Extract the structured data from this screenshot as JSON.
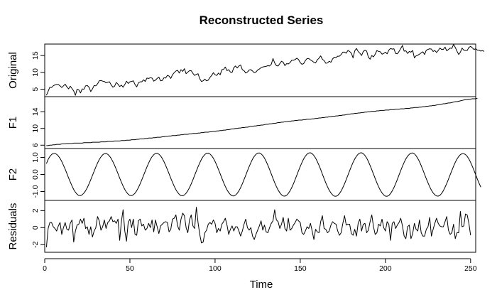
{
  "title": "Reconstructed Series",
  "chart_data": {
    "type": "line",
    "title": "Reconstructed Series",
    "xlabel": "Time",
    "xlim": [
      0,
      253
    ],
    "xticks": [
      0,
      50,
      100,
      150,
      200,
      250
    ],
    "n_points": 250,
    "panels": [
      {
        "name": "Original",
        "ylabel": "Original",
        "ylim": [
          2.8,
          18.4
        ],
        "yticks": [
          5,
          10,
          15
        ],
        "y": [
          3.2,
          4.4,
          5.6,
          5.5,
          6.0,
          6.3,
          6.4,
          6.4,
          6.0,
          5.5,
          6.0,
          6.5,
          5.7,
          5.1,
          5.9,
          5.2,
          4.5,
          3.2,
          5.0,
          4.8,
          3.9,
          5.1,
          5.0,
          6.0,
          6.1,
          5.6,
          4.3,
          5.1,
          6.1,
          6.0,
          6.6,
          7.5,
          7.6,
          7.4,
          7.3,
          6.9,
          7.1,
          7.2,
          6.3,
          5.6,
          5.9,
          7.0,
          6.5,
          5.8,
          6.2,
          5.6,
          6.4,
          7.4,
          6.7,
          7.2,
          7.3,
          7.5,
          6.4,
          5.7,
          6.9,
          7.2,
          7.2,
          7.8,
          7.3,
          8.3,
          8.2,
          8.4,
          8.3,
          7.4,
          7.7,
          8.2,
          8.6,
          7.5,
          7.6,
          8.4,
          8.3,
          9.1,
          8.9,
          8.2,
          9.3,
          9.9,
          10.4,
          10.6,
          9.8,
          10.8,
          10.3,
          11.1,
          9.6,
          10.1,
          10.5,
          10.5,
          9.7,
          9.1,
          9.4,
          9.6,
          8.1,
          7.3,
          7.5,
          8.0,
          7.5,
          7.7,
          8.5,
          9.1,
          9.9,
          9.3,
          9.1,
          9.8,
          9.3,
          10.8,
          10.9,
          11.6,
          10.5,
          10.8,
          10.1,
          10.0,
          11.4,
          11.9,
          11.3,
          11.9,
          12.2,
          10.8,
          10.5,
          9.8,
          10.1,
          10.7,
          10.8,
          10.4,
          9.9,
          10.1,
          10.7,
          11.0,
          11.4,
          11.6,
          11.7,
          11.8,
          12.0,
          11.9,
          12.4,
          14.1,
          12.8,
          12.0,
          11.9,
          12.6,
          13.3,
          13.0,
          12.0,
          12.6,
          12.5,
          12.9,
          13.6,
          13.6,
          13.8,
          14.2,
          13.8,
          12.9,
          12.4,
          12.6,
          13.5,
          14.1,
          14.1,
          13.7,
          13.4,
          13.0,
          12.8,
          13.7,
          14.2,
          14.9,
          13.9,
          13.5,
          12.7,
          12.8,
          13.3,
          13.0,
          14.0,
          14.5,
          14.4,
          14.8,
          14.8,
          15.3,
          16.0,
          16.0,
          15.7,
          16.5,
          16.2,
          15.7,
          14.3,
          16.4,
          17.1,
          16.2,
          15.7,
          15.0,
          16.2,
          16.6,
          16.3,
          14.5,
          13.9,
          15.0,
          14.6,
          15.4,
          16.5,
          16.2,
          16.1,
          15.4,
          15.6,
          16.0,
          15.5,
          16.6,
          17.1,
          16.9,
          17.0,
          15.6,
          15.5,
          16.2,
          17.1,
          18.0,
          16.3,
          16.4,
          15.6,
          16.2,
          16.0,
          16.5,
          14.3,
          14.9,
          15.1,
          15.4,
          15.8,
          16.1,
          15.3,
          16.6,
          16.8,
          17.0,
          16.9,
          16.2,
          16.5,
          15.9,
          16.5,
          17.2,
          16.8,
          16.8,
          17.5,
          16.4,
          16.8,
          17.2,
          17.1,
          18.3,
          17.4,
          16.3,
          15.3,
          16.0,
          17.2,
          16.6,
          16.5,
          16.5,
          17.4,
          17.7,
          17.3,
          16.8,
          17.0,
          16.6,
          16.6,
          16.3,
          16.5,
          16.2
        ]
      },
      {
        "name": "F1",
        "ylabel": "F1",
        "ylim": [
          5.2,
          17.6
        ],
        "yticks": [
          6,
          10,
          14
        ],
        "y": [
          5.9,
          5.9,
          6.0,
          6.0,
          6.1,
          6.1,
          6.2,
          6.2,
          6.2,
          6.3,
          6.3,
          6.3,
          6.4,
          6.4,
          6.4,
          6.4,
          6.5,
          6.5,
          6.5,
          6.5,
          6.5,
          6.5,
          6.6,
          6.6,
          6.6,
          6.6,
          6.6,
          6.7,
          6.7,
          6.7,
          6.7,
          6.7,
          6.8,
          6.8,
          6.8,
          6.8,
          6.9,
          6.9,
          6.9,
          6.9,
          7.0,
          7.0,
          7.0,
          7.0,
          7.1,
          7.1,
          7.1,
          7.2,
          7.2,
          7.2,
          7.3,
          7.3,
          7.3,
          7.4,
          7.4,
          7.5,
          7.5,
          7.5,
          7.6,
          7.6,
          7.7,
          7.7,
          7.7,
          7.8,
          7.8,
          7.9,
          7.9,
          7.9,
          8.0,
          8.0,
          8.1,
          8.1,
          8.2,
          8.2,
          8.3,
          8.3,
          8.3,
          8.4,
          8.4,
          8.5,
          8.5,
          8.6,
          8.6,
          8.6,
          8.7,
          8.7,
          8.8,
          8.8,
          8.8,
          8.9,
          8.9,
          9.0,
          9.0,
          9.1,
          9.1,
          9.1,
          9.2,
          9.2,
          9.3,
          9.3,
          9.4,
          9.4,
          9.5,
          9.5,
          9.6,
          9.6,
          9.7,
          9.7,
          9.8,
          9.9,
          9.9,
          10.0,
          10.0,
          10.1,
          10.1,
          10.2,
          10.2,
          10.3,
          10.3,
          10.4,
          10.5,
          10.5,
          10.6,
          10.6,
          10.7,
          10.7,
          10.8,
          10.8,
          10.9,
          11.0,
          11.0,
          11.1,
          11.1,
          11.2,
          11.2,
          11.3,
          11.4,
          11.4,
          11.5,
          11.5,
          11.6,
          11.6,
          11.7,
          11.7,
          11.8,
          11.8,
          11.9,
          11.9,
          12.0,
          12.0,
          12.0,
          12.1,
          12.1,
          12.2,
          12.2,
          12.2,
          12.3,
          12.3,
          12.4,
          12.4,
          12.5,
          12.5,
          12.6,
          12.6,
          12.7,
          12.7,
          12.8,
          12.8,
          12.9,
          12.9,
          13.0,
          13.0,
          13.1,
          13.1,
          13.2,
          13.2,
          13.3,
          13.4,
          13.4,
          13.5,
          13.5,
          13.6,
          13.6,
          13.7,
          13.7,
          13.8,
          13.8,
          13.9,
          13.9,
          14.0,
          14.0,
          14.1,
          14.1,
          14.1,
          14.2,
          14.2,
          14.3,
          14.3,
          14.3,
          14.4,
          14.4,
          14.4,
          14.5,
          14.5,
          14.5,
          14.6,
          14.6,
          14.6,
          14.7,
          14.7,
          14.7,
          14.8,
          14.8,
          14.8,
          14.9,
          14.9,
          15.0,
          15.0,
          15.0,
          15.1,
          15.1,
          15.2,
          15.2,
          15.3,
          15.3,
          15.4,
          15.4,
          15.5,
          15.5,
          15.6,
          15.7,
          15.7,
          15.8,
          15.9,
          15.9,
          16.0,
          16.1,
          16.1,
          16.2,
          16.3,
          16.4,
          16.4,
          16.5,
          16.6,
          16.7,
          16.8,
          16.9,
          16.9,
          17.0,
          17.0,
          17.1,
          17.1,
          17.1,
          17.2
        ]
      },
      {
        "name": "F2",
        "ylabel": "F2",
        "ylim": [
          -1.52,
          1.52
        ],
        "yticks": [
          -1.0,
          0.0,
          1.0
        ],
        "y": [
          0.64,
          0.88,
          1.05,
          1.17,
          1.23,
          1.23,
          1.18,
          1.08,
          0.94,
          0.76,
          0.54,
          0.31,
          0.06,
          -0.2,
          -0.44,
          -0.67,
          -0.88,
          -1.04,
          -1.16,
          -1.23,
          -1.24,
          -1.19,
          -1.09,
          -0.95,
          -0.77,
          -0.55,
          -0.31,
          -0.06,
          0.19,
          0.44,
          0.67,
          0.87,
          1.03,
          1.15,
          1.22,
          1.23,
          1.18,
          1.08,
          0.94,
          0.75,
          0.54,
          0.3,
          0.05,
          -0.21,
          -0.45,
          -0.68,
          -0.88,
          -1.04,
          -1.16,
          -1.23,
          -1.24,
          -1.19,
          -1.1,
          -0.95,
          -0.77,
          -0.55,
          -0.31,
          -0.06,
          0.19,
          0.44,
          0.67,
          0.88,
          1.04,
          1.16,
          1.23,
          1.24,
          1.19,
          1.09,
          0.94,
          0.75,
          0.53,
          0.29,
          0.04,
          -0.22,
          -0.46,
          -0.69,
          -0.89,
          -1.05,
          -1.17,
          -1.24,
          -1.25,
          -1.2,
          -1.1,
          -0.95,
          -0.77,
          -0.55,
          -0.31,
          -0.05,
          0.2,
          0.45,
          0.68,
          0.89,
          1.05,
          1.17,
          1.24,
          1.25,
          1.2,
          1.1,
          0.95,
          0.76,
          0.54,
          0.29,
          0.04,
          -0.22,
          -0.47,
          -0.7,
          -0.9,
          -1.06,
          -1.18,
          -1.25,
          -1.26,
          -1.21,
          -1.11,
          -0.96,
          -0.77,
          -0.55,
          -0.3,
          -0.05,
          0.21,
          0.46,
          0.69,
          0.9,
          1.06,
          1.18,
          1.25,
          1.26,
          1.21,
          1.11,
          0.96,
          0.76,
          0.54,
          0.29,
          0.03,
          -0.23,
          -0.48,
          -0.71,
          -0.91,
          -1.07,
          -1.19,
          -1.26,
          -1.27,
          -1.22,
          -1.11,
          -0.96,
          -0.77,
          -0.55,
          -0.3,
          -0.04,
          0.22,
          0.47,
          0.7,
          0.91,
          1.07,
          1.19,
          1.26,
          1.27,
          1.22,
          1.11,
          0.96,
          0.76,
          0.54,
          0.29,
          0.02,
          -0.24,
          -0.49,
          -0.72,
          -0.92,
          -1.08,
          -1.2,
          -1.27,
          -1.28,
          -1.23,
          -1.12,
          -0.97,
          -0.77,
          -0.55,
          -0.3,
          -0.04,
          0.22,
          0.47,
          0.71,
          0.91,
          1.07,
          1.19,
          1.26,
          1.27,
          1.22,
          1.11,
          0.96,
          0.76,
          0.53,
          0.28,
          0.02,
          -0.24,
          -0.49,
          -0.72,
          -0.92,
          -1.08,
          -1.2,
          -1.27,
          -1.28,
          -1.23,
          -1.12,
          -0.96,
          -0.77,
          -0.54,
          -0.29,
          -0.03,
          0.23,
          0.48,
          0.71,
          0.91,
          1.07,
          1.18,
          1.25,
          1.26,
          1.21,
          1.1,
          0.94,
          0.75,
          0.52,
          0.27,
          0.01,
          -0.25,
          -0.49,
          -0.72,
          -0.92,
          -1.08,
          -1.19,
          -1.26,
          -1.27,
          -1.22,
          -1.11,
          -0.95,
          -0.75,
          -0.53,
          -0.28,
          -0.02,
          0.23,
          0.48,
          0.71,
          0.9,
          1.05,
          1.16,
          1.22,
          1.22,
          1.17,
          1.06,
          0.91,
          0.71,
          0.48,
          0.24,
          -0.02,
          -0.28,
          -0.52,
          -0.74
        ]
      },
      {
        "name": "Residuals",
        "ylabel": "Residuals",
        "ylim": [
          -2.9,
          3.2
        ],
        "yticks": [
          -2,
          0,
          2
        ],
        "y": [
          -2.3,
          -0.1,
          0.6,
          0.6,
          0.1,
          -0.1,
          -0.4,
          0.2,
          0.6,
          -0.8,
          0.0,
          0.6,
          -0.2,
          -0.3,
          0.5,
          0.9,
          -1.7,
          -0.4,
          0.3,
          0.4,
          1.0,
          0.5,
          1.1,
          -0.1,
          0.1,
          -0.8,
          0.1,
          -1.1,
          -0.4,
          0.0,
          1.3,
          0.8,
          -0.3,
          0.1,
          0.9,
          -0.1,
          0.6,
          0.8,
          1.3,
          0.7,
          0.8,
          0.5,
          1.0,
          -1.5,
          0.7,
          2.1,
          -0.4,
          -1.6,
          0.6,
          1.0,
          0.0,
          1.0,
          -0.8,
          -0.9,
          0.8,
          1.0,
          0.2,
          0.4,
          -0.3,
          -0.1,
          0.5,
          0.0,
          0.9,
          -0.5,
          0.9,
          0.1,
          -0.7,
          0.2,
          0.4,
          0.6,
          0.7,
          0.6,
          -0.5,
          -0.2,
          1.0,
          1.1,
          1.5,
          0.2,
          -0.3,
          1.0,
          1.7,
          1.4,
          0.0,
          -0.6,
          0.9,
          1.5,
          0.2,
          -0.1,
          2.4,
          0.6,
          -0.8,
          -1.8,
          -1.7,
          -0.6,
          -0.3,
          0.4,
          0.6,
          0.4,
          0.9,
          0.5,
          -0.6,
          -0.1,
          -0.4,
          0.4,
          0.7,
          1.1,
          0.3,
          -0.8,
          -0.2,
          0.2,
          -0.4,
          0.1,
          0.1,
          -0.4,
          -1.0,
          -0.4,
          0.4,
          1.0,
          0.0,
          -0.3,
          0.0,
          -1.0,
          -1.4,
          -0.8,
          -0.3,
          0.2,
          0.8,
          -0.3,
          0.3,
          -0.5,
          -0.6,
          0.0,
          0.5,
          0.8,
          2.1,
          0.9,
          0.7,
          -0.1,
          0.4,
          1.2,
          -0.1,
          -0.4,
          1.1,
          -0.3,
          -0.1,
          0.3,
          0.6,
          1.0,
          0.8,
          0.6,
          -0.6,
          -0.8,
          -0.4,
          0.1,
          -0.1,
          0.5,
          -0.4,
          -1.4,
          -0.2,
          -0.5,
          -0.6,
          0.7,
          1.4,
          -0.1,
          -0.2,
          -0.6,
          -0.4,
          0.3,
          0.7,
          0.5,
          0.4,
          -0.4,
          -0.9,
          -0.6,
          0.5,
          1.4,
          0.3,
          0.4,
          0.4,
          -0.7,
          -0.9,
          -0.2,
          -1.0,
          0.5,
          1.0,
          -0.4,
          0.4,
          0.5,
          -0.6,
          -0.3,
          0.7,
          1.5,
          0.1,
          -0.8,
          -0.6,
          0.4,
          0.2,
          1.0,
          0.0,
          -0.4,
          0.7,
          0.4,
          -1.5,
          0.5,
          0.7,
          -0.1,
          0.3,
          0.6,
          1.1,
          0.2,
          -1.0,
          -1.3,
          0.1,
          0.3,
          -1.3,
          -0.7,
          0.5,
          -0.2,
          -0.4,
          0.9,
          -0.6,
          -1.0,
          -1.0,
          -0.2,
          0.1,
          1.2,
          -1.0,
          -0.2,
          0.5,
          1.1,
          0.5,
          0.2,
          0.1,
          0.1,
          0.7,
          1.3,
          -0.3,
          -0.8,
          -0.6,
          0.4,
          -1.3,
          -0.6,
          -0.6,
          1.9,
          0.1,
          0.2,
          1.6,
          1.5,
          0.5,
          -0.9
        ]
      }
    ]
  }
}
